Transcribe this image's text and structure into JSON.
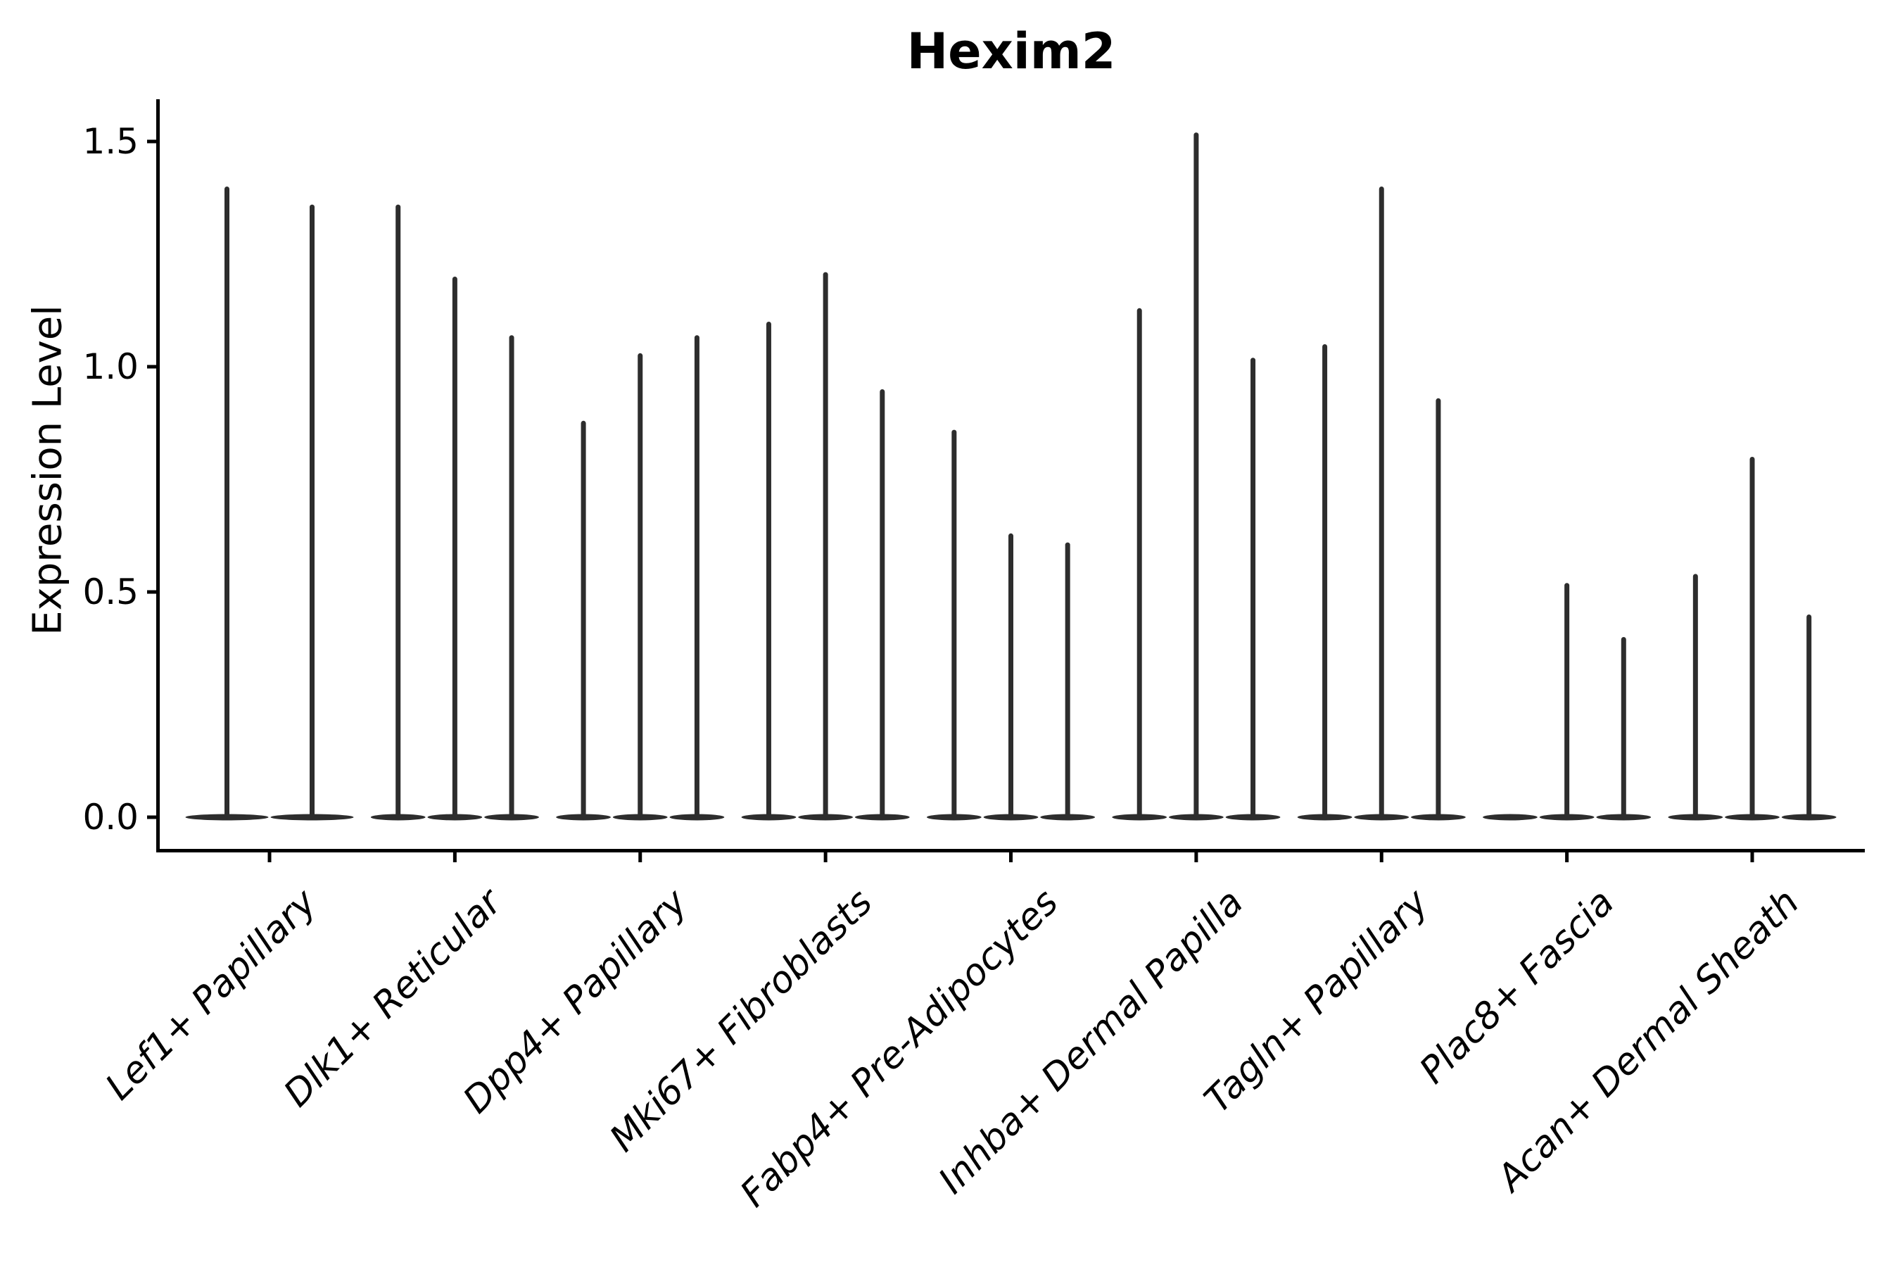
{
  "chart_data": {
    "type": "violin",
    "title": "Hexim2",
    "ylabel": "Expression Level",
    "xlabel": "",
    "ylim": [
      -0.08,
      1.59
    ],
    "yticks": [
      0.0,
      0.5,
      1.0,
      1.5
    ],
    "ytick_labels": [
      "0.0",
      "0.5",
      "1.0",
      "1.5"
    ],
    "grid": false,
    "legend_position": "none",
    "categories": [
      "Lef1+ Papillary",
      "Dlk1+ Reticular",
      "Dpp4+ Papillary",
      "Mki67+ Fibroblasts",
      "Fabp4+ Pre-Adipocytes",
      "Inhba+ Dermal Papilla",
      "Tagln+ Papillary",
      "Plac8+ Fascia",
      "Acan+ Dermal Sheath"
    ],
    "violin_note": "Each category shows 2-3 very thin spike-like violins sitting on a flat base at 0; values are the max expression (spike top) of each violin in order left to right. 0.0 means a flat violin with no spike.",
    "violins": [
      [
        1.4,
        1.36
      ],
      [
        1.36,
        1.2,
        1.07
      ],
      [
        0.88,
        1.03,
        1.07
      ],
      [
        1.1,
        1.21,
        0.95
      ],
      [
        0.86,
        0.63,
        0.61
      ],
      [
        1.13,
        1.52,
        1.02
      ],
      [
        1.05,
        1.4,
        0.93
      ],
      [
        0.0,
        0.52,
        0.4
      ],
      [
        0.54,
        0.8,
        0.45
      ]
    ],
    "colors": {
      "violin": "#2d2d2d",
      "axis": "#000000",
      "text": "#000000",
      "background": "#ffffff"
    }
  }
}
